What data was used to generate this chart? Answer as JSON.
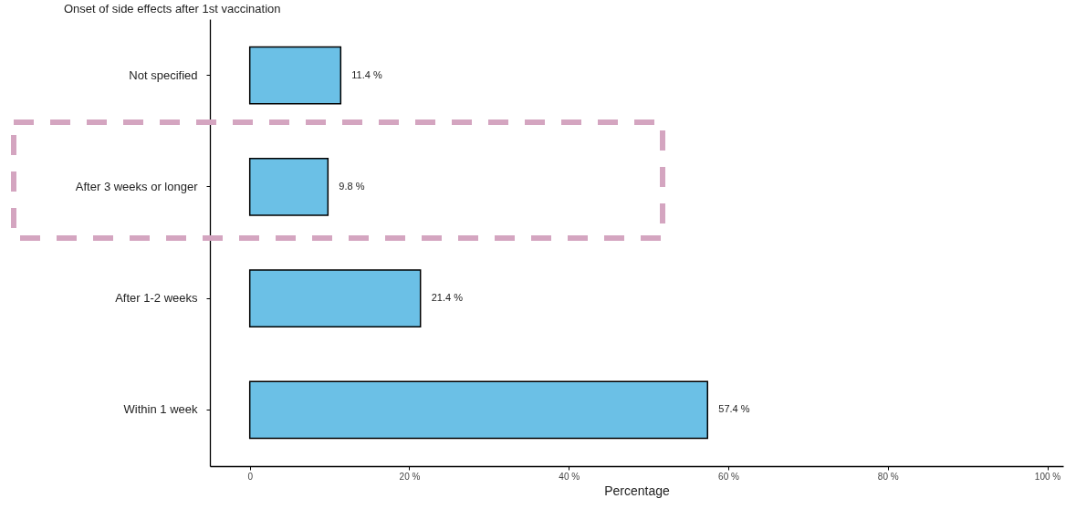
{
  "chart_data": {
    "type": "bar",
    "orientation": "horizontal",
    "title": "Onset of side effects after 1st vaccination",
    "xlabel": "Percentage",
    "categories": [
      "Not specified",
      "After 3 weeks or longer",
      "After 1-2 weeks",
      "Within 1 week"
    ],
    "values": [
      11.4,
      9.8,
      21.4,
      57.4
    ],
    "color": "#6bc0e6",
    "value_labels": [
      "11.4 %",
      "9.8 %",
      "21.4 %",
      "57.4 %"
    ],
    "xlim": [
      -5,
      102
    ],
    "xticks": [
      0,
      {
        "value": 20,
        "label": "20 %"
      },
      {
        "value": 40,
        "label": "40 %"
      },
      {
        "value": 60,
        "label": "60 %"
      },
      {
        "value": 80,
        "label": "80 %"
      },
      {
        "value": 100,
        "label": "100 %"
      }
    ],
    "grid": false
  }
}
